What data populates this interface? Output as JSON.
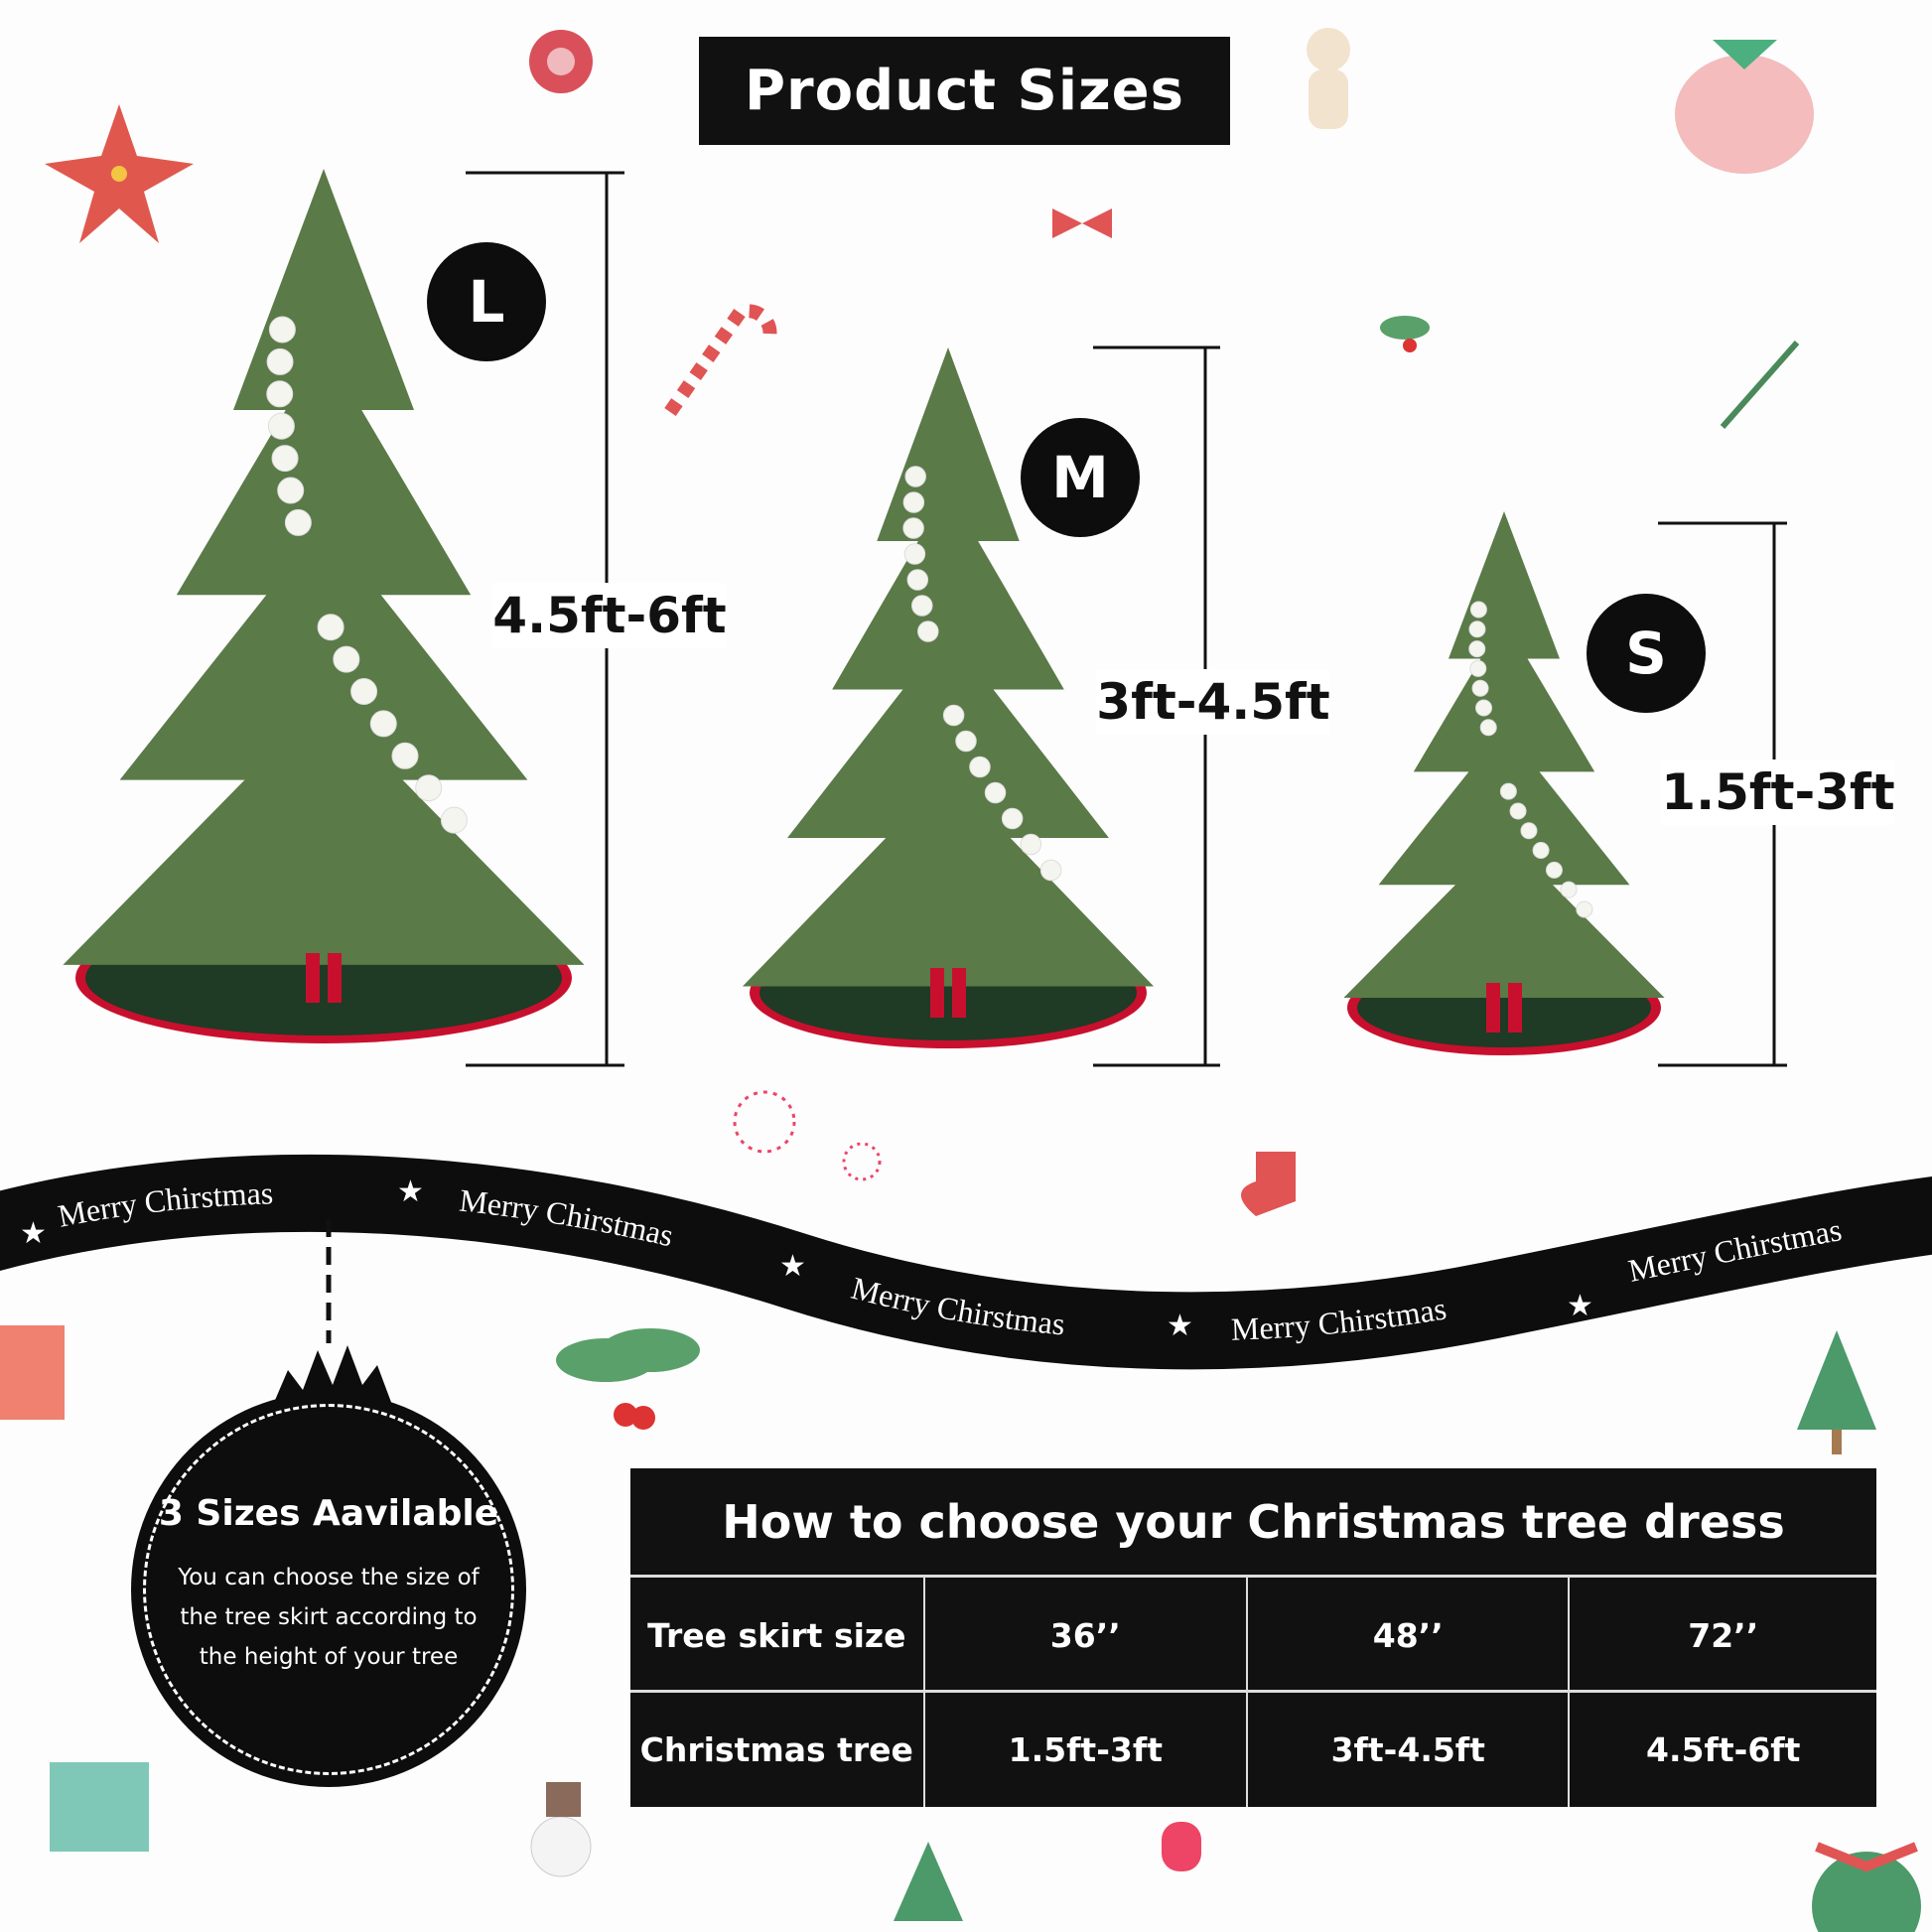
{
  "title": "Product Sizes",
  "sizes": [
    {
      "badge": "L",
      "height_range": "4.5ft-6ft"
    },
    {
      "badge": "M",
      "height_range": "3ft-4.5ft"
    },
    {
      "badge": "S",
      "height_range": "1.5ft-3ft"
    }
  ],
  "ribbon": {
    "text": "Merry Chirstmas"
  },
  "ornament": {
    "title": "3 Sizes Aavilable",
    "text": "You can choose the size of the tree skirt according to the height of your tree"
  },
  "table": {
    "title": "How to choose your Christmas tree dress",
    "rows": [
      {
        "label": "Tree skirt size",
        "values": [
          "36’’",
          "48’’",
          "72’’"
        ]
      },
      {
        "label": "Christmas tree",
        "values": [
          "1.5ft-3ft",
          "3ft-4.5ft",
          "4.5ft-6ft"
        ]
      }
    ]
  },
  "colors": {
    "tree_green": "#5a7a48",
    "skirt_green": "#1f3a25",
    "skirt_red": "#c8102e",
    "dark": "#111111"
  }
}
